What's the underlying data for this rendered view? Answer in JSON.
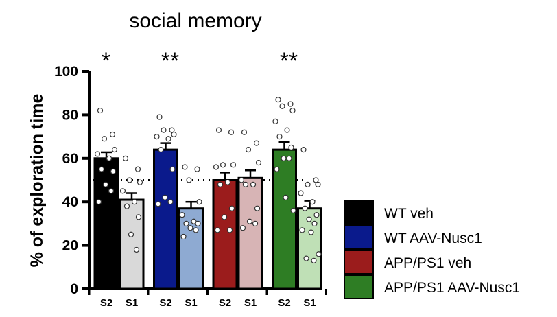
{
  "chart_data": {
    "type": "bar",
    "title": "social memory",
    "ylabel": "% of exploration time",
    "xlabel": "",
    "ylim": [
      0,
      100
    ],
    "yticks": [
      0,
      20,
      40,
      60,
      80,
      100
    ],
    "reference_line": 50,
    "grid": false,
    "legend_position": "bottom-right",
    "categories": [
      "S2",
      "S1",
      "S2",
      "S1",
      "S2",
      "S1",
      "S2",
      "S1"
    ],
    "groups": [
      {
        "name": "WT veh",
        "color": "#000000",
        "light_color": "#d9d9d9",
        "significance": "*",
        "values": [
          60,
          41
        ],
        "errors": [
          2.8,
          3.0
        ],
        "points": [
          [
            82,
            71,
            69,
            64,
            62,
            60,
            55,
            54,
            48,
            45,
            40
          ],
          [
            60,
            55,
            50,
            49,
            45,
            40,
            38,
            33,
            25,
            18
          ]
        ]
      },
      {
        "name": "WT AAV-Nusc1",
        "color": "#0a1a8c",
        "light_color": "#8eaad2",
        "significance": "**",
        "values": [
          64,
          37
        ],
        "errors": [
          3.0,
          3.0
        ],
        "points": [
          [
            79,
            73,
            73,
            71,
            70,
            69,
            64,
            55,
            42,
            40,
            39
          ],
          [
            56,
            55,
            50,
            40,
            34,
            31,
            30,
            30,
            28,
            27,
            24
          ]
        ]
      },
      {
        "name": "APP/PS1 veh",
        "color": "#9b1c1c",
        "light_color": "#d7b4b5",
        "significance": "",
        "values": [
          50,
          51
        ],
        "errors": [
          3.5,
          3.5
        ],
        "points": [
          [
            73,
            72,
            57,
            57,
            56,
            49,
            48,
            37,
            33,
            27,
            27
          ],
          [
            72,
            67,
            64,
            58,
            50,
            48,
            48,
            37,
            31,
            30,
            28
          ]
        ]
      },
      {
        "name": "APP/PS1 AAV-Nusc1",
        "color": "#2e7d24",
        "light_color": "#bfe0b6",
        "significance": "**",
        "values": [
          64,
          37
        ],
        "errors": [
          3.5,
          3.5
        ],
        "points": [
          [
            87,
            85,
            84,
            82,
            77,
            73,
            70,
            65,
            60,
            60,
            55,
            42,
            36
          ],
          [
            64,
            50,
            48,
            48,
            44,
            40,
            37,
            34,
            32,
            30,
            27,
            26,
            16,
            14,
            13
          ]
        ]
      }
    ]
  }
}
